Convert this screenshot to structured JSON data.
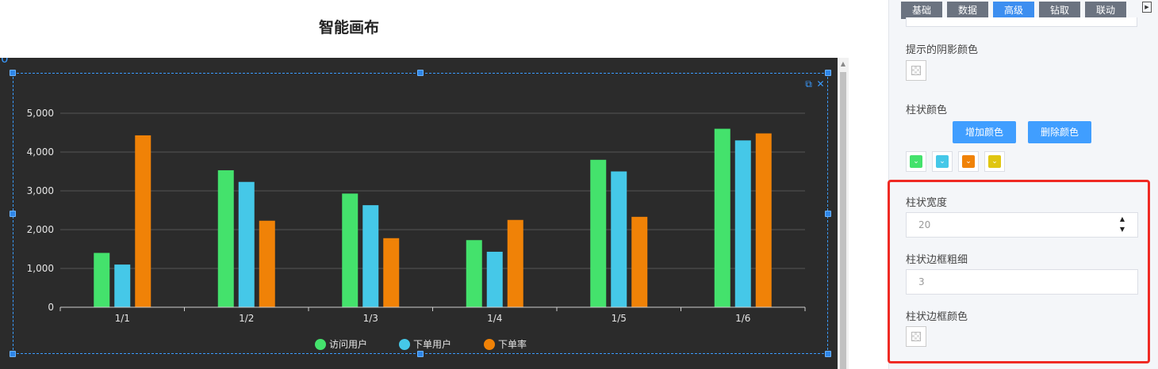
{
  "canvas": {
    "title": "智能画布",
    "ruler_mark": "0"
  },
  "chart_data": {
    "type": "bar",
    "categories": [
      "1/1",
      "1/2",
      "1/3",
      "1/4",
      "1/5",
      "1/6"
    ],
    "series": [
      {
        "name": "访问用户",
        "color": "#44e26c",
        "values": [
          1400,
          3530,
          2930,
          1730,
          3800,
          4600
        ]
      },
      {
        "name": "下单用户",
        "color": "#45c8e8",
        "values": [
          1100,
          3230,
          2630,
          1430,
          3500,
          4300
        ]
      },
      {
        "name": "下单率",
        "color": "#f08207",
        "values": [
          4430,
          2230,
          1780,
          2250,
          2330,
          4480
        ]
      }
    ],
    "y_ticks": [
      "0",
      "1,000",
      "2,000",
      "3,000",
      "4,000",
      "5,000"
    ],
    "ylim": [
      0,
      5000
    ],
    "grid": true,
    "legend": "bottom-center"
  },
  "panel": {
    "tabs": [
      {
        "label": "基础",
        "active": false
      },
      {
        "label": "数据",
        "active": false
      },
      {
        "label": "高级",
        "active": true
      },
      {
        "label": "钻取",
        "active": false
      },
      {
        "label": "联动",
        "active": false
      }
    ],
    "shadow_color_label": "提示的阴影颜色",
    "bar_color_label": "柱状颜色",
    "add_color_button": "增加颜色",
    "delete_color_button": "删除颜色",
    "bar_colors": [
      "#44e26c",
      "#45c8e8",
      "#f08207",
      "#e0c611"
    ],
    "bar_width_label": "柱状宽度",
    "bar_width_value": "20",
    "bar_border_width_label": "柱状边框粗细",
    "bar_border_width_value": "3",
    "bar_border_color_label": "柱状边框颜色"
  }
}
